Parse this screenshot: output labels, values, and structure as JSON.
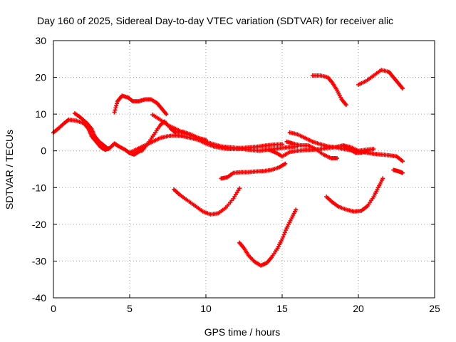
{
  "chart_data": {
    "type": "scatter",
    "title": "Day 160 of 2025, Sidereal Day-to-day VTEC variation (SDTVAR) for receiver alic",
    "xlabel": "GPS time / hours",
    "ylabel": "SDTVAR / TECUs",
    "xlim": [
      0,
      25
    ],
    "ylim": [
      -40,
      30
    ],
    "xticks": [
      0,
      5,
      10,
      15,
      20,
      25
    ],
    "yticks": [
      -40,
      -30,
      -20,
      -10,
      0,
      10,
      20,
      30
    ],
    "grid": true,
    "legend": "none",
    "marker_color": "#ff0000",
    "series": [
      {
        "points": [
          [
            0.0,
            5.0
          ],
          [
            0.3,
            6.0
          ],
          [
            0.7,
            7.5
          ],
          [
            1.0,
            8.5
          ],
          [
            1.5,
            8.2
          ],
          [
            2.0,
            7.5
          ],
          [
            2.3,
            6.0
          ],
          [
            2.5,
            4.0
          ],
          [
            2.8,
            2.5
          ],
          [
            3.1,
            1.0
          ],
          [
            3.4,
            0.3
          ],
          [
            3.7,
            0.8
          ],
          [
            4.0,
            2.0
          ],
          [
            4.3,
            1.2
          ],
          [
            4.7,
            0.3
          ],
          [
            5.0,
            -0.6
          ],
          [
            5.3,
            -1.0
          ],
          [
            5.6,
            -0.2
          ],
          [
            5.9,
            0.5
          ]
        ]
      },
      {
        "points": [
          [
            1.4,
            10.2
          ],
          [
            1.8,
            9.0
          ],
          [
            2.2,
            7.5
          ],
          [
            2.5,
            6.0
          ],
          [
            2.7,
            4.0
          ],
          [
            3.0,
            2.5
          ],
          [
            3.3,
            1.5
          ],
          [
            3.6,
            0.5
          ]
        ]
      },
      {
        "points": [
          [
            4.0,
            10.5
          ],
          [
            4.2,
            13.5
          ],
          [
            4.5,
            15.0
          ],
          [
            4.9,
            14.5
          ],
          [
            5.2,
            13.5
          ],
          [
            5.6,
            13.5
          ],
          [
            6.0,
            14.0
          ],
          [
            6.4,
            14.0
          ],
          [
            6.8,
            13.0
          ],
          [
            7.1,
            11.5
          ],
          [
            7.4,
            10.0
          ]
        ]
      },
      {
        "points": [
          [
            5.8,
            0.0
          ],
          [
            6.2,
            2.0
          ],
          [
            6.6,
            4.5
          ],
          [
            7.0,
            7.0
          ],
          [
            7.3,
            8.0
          ],
          [
            7.7,
            6.0
          ],
          [
            8.0,
            5.0
          ],
          [
            8.5,
            5.2
          ],
          [
            9.0,
            4.5
          ],
          [
            9.5,
            3.5
          ],
          [
            10.0,
            2.5
          ],
          [
            10.5,
            1.8
          ],
          [
            11.0,
            1.2
          ],
          [
            11.5,
            1.0
          ],
          [
            12.0,
            0.8
          ],
          [
            12.5,
            0.8
          ],
          [
            13.0,
            1.0
          ],
          [
            13.5,
            1.2
          ],
          [
            14.0,
            1.5
          ],
          [
            14.5,
            1.7
          ],
          [
            15.0,
            1.8
          ]
        ]
      },
      {
        "points": [
          [
            5.0,
            -0.5
          ],
          [
            5.5,
            0.5
          ],
          [
            6.0,
            1.5
          ],
          [
            6.5,
            2.5
          ],
          [
            7.0,
            3.5
          ],
          [
            7.5,
            4.0
          ],
          [
            8.0,
            4.2
          ],
          [
            8.5,
            4.0
          ],
          [
            9.0,
            3.5
          ],
          [
            9.5,
            3.0
          ],
          [
            10.0,
            2.0
          ],
          [
            10.5,
            1.2
          ],
          [
            11.0,
            0.8
          ],
          [
            11.5,
            0.5
          ],
          [
            12.0,
            0.5
          ],
          [
            12.5,
            0.5
          ],
          [
            13.0,
            0.2
          ],
          [
            13.5,
            0.0
          ],
          [
            14.0,
            0.3
          ],
          [
            14.5,
            0.5
          ],
          [
            15.0,
            0.8
          ],
          [
            15.5,
            1.0
          ],
          [
            16.0,
            1.2
          ]
        ]
      },
      {
        "points": [
          [
            6.5,
            9.8
          ],
          [
            7.0,
            8.5
          ],
          [
            7.5,
            7.0
          ],
          [
            8.0,
            6.0
          ],
          [
            8.5,
            5.0
          ],
          [
            9.0,
            4.2
          ],
          [
            9.5,
            3.5
          ],
          [
            10.0,
            3.0
          ]
        ]
      },
      {
        "points": [
          [
            7.9,
            -10.5
          ],
          [
            8.3,
            -12.0
          ],
          [
            8.8,
            -13.5
          ],
          [
            9.3,
            -15.0
          ],
          [
            9.8,
            -16.5
          ],
          [
            10.3,
            -17.3
          ],
          [
            10.8,
            -17.0
          ],
          [
            11.3,
            -15.5
          ],
          [
            11.8,
            -13.0
          ],
          [
            12.2,
            -10.2
          ]
        ]
      },
      {
        "points": [
          [
            11.0,
            -7.5
          ],
          [
            11.4,
            -7.2
          ],
          [
            11.8,
            -6.0
          ],
          [
            12.3,
            -5.8
          ],
          [
            12.8,
            -5.8
          ],
          [
            13.3,
            -5.6
          ],
          [
            13.8,
            -5.5
          ],
          [
            14.3,
            -5.2
          ],
          [
            14.8,
            -4.5
          ],
          [
            15.2,
            -3.5
          ]
        ]
      },
      {
        "points": [
          [
            12.2,
            -25.0
          ],
          [
            12.5,
            -26.5
          ],
          [
            12.8,
            -28.5
          ],
          [
            13.2,
            -30.2
          ],
          [
            13.6,
            -31.2
          ],
          [
            14.0,
            -30.5
          ],
          [
            14.3,
            -29.0
          ],
          [
            14.7,
            -26.5
          ],
          [
            15.0,
            -24.0
          ],
          [
            15.3,
            -21.0
          ],
          [
            15.6,
            -18.5
          ],
          [
            15.9,
            -16.0
          ]
        ]
      },
      {
        "points": [
          [
            14.2,
            0.2
          ],
          [
            14.6,
            -0.5
          ],
          [
            15.0,
            -1.5
          ],
          [
            15.5,
            -0.3
          ],
          [
            16.0,
            0.0
          ],
          [
            16.5,
            0.2
          ],
          [
            17.0,
            0.3
          ],
          [
            17.5,
            0.5
          ],
          [
            18.0,
            0.8
          ],
          [
            18.5,
            1.0
          ],
          [
            19.0,
            1.5
          ],
          [
            19.5,
            1.0
          ],
          [
            20.0,
            0.0
          ],
          [
            20.5,
            -0.5
          ],
          [
            21.0,
            -0.8
          ],
          [
            21.5,
            -1.0
          ],
          [
            22.0,
            -1.2
          ],
          [
            22.5,
            -1.5
          ],
          [
            22.9,
            -2.8
          ]
        ]
      },
      {
        "points": [
          [
            15.5,
            5.0
          ],
          [
            16.0,
            4.5
          ],
          [
            16.5,
            3.5
          ],
          [
            17.0,
            2.5
          ],
          [
            17.5,
            1.8
          ],
          [
            18.0,
            1.2
          ],
          [
            18.5,
            1.0
          ],
          [
            19.0,
            0.5
          ],
          [
            19.5,
            0.2
          ],
          [
            20.0,
            0.0
          ],
          [
            20.5,
            0.3
          ],
          [
            21.0,
            0.5
          ]
        ]
      },
      {
        "points": [
          [
            15.3,
            2.5
          ],
          [
            15.7,
            2.0
          ],
          [
            16.2,
            1.5
          ],
          [
            16.7,
            1.5
          ],
          [
            17.2,
            0.5
          ],
          [
            17.7,
            -1.0
          ],
          [
            18.2,
            -2.0
          ],
          [
            18.6,
            -2.0
          ]
        ]
      },
      {
        "points": [
          [
            17.0,
            20.5
          ],
          [
            17.5,
            20.5
          ],
          [
            18.0,
            20.0
          ],
          [
            18.3,
            18.5
          ],
          [
            18.6,
            16.5
          ],
          [
            18.9,
            14.0
          ],
          [
            19.2,
            12.5
          ]
        ]
      },
      {
        "points": [
          [
            17.9,
            -12.5
          ],
          [
            18.3,
            -14.0
          ],
          [
            18.7,
            -15.2
          ],
          [
            19.2,
            -16.0
          ],
          [
            19.7,
            -16.5
          ],
          [
            20.2,
            -16.3
          ],
          [
            20.6,
            -15.0
          ],
          [
            21.0,
            -12.5
          ],
          [
            21.3,
            -10.0
          ],
          [
            21.6,
            -7.5
          ]
        ]
      },
      {
        "points": [
          [
            19.0,
            1.5
          ],
          [
            19.4,
            0.5
          ],
          [
            19.8,
            -0.5
          ],
          [
            20.2,
            -0.5
          ],
          [
            20.6,
            0.0
          ]
        ]
      },
      {
        "points": [
          [
            20.0,
            18.0
          ],
          [
            20.5,
            19.0
          ],
          [
            21.0,
            20.5
          ],
          [
            21.5,
            22.0
          ],
          [
            22.0,
            21.5
          ],
          [
            22.3,
            20.0
          ],
          [
            22.6,
            18.5
          ],
          [
            22.9,
            17.0
          ]
        ]
      },
      {
        "points": [
          [
            22.3,
            -5.2
          ],
          [
            22.6,
            -5.5
          ],
          [
            22.9,
            -6.0
          ]
        ]
      }
    ]
  }
}
